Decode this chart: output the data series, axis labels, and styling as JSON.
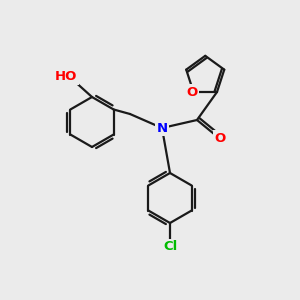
{
  "bg_color": "#ebebeb",
  "bond_color": "#1a1a1a",
  "bond_width": 1.6,
  "atom_colors": {
    "O": "#ff0000",
    "N": "#0000ff",
    "Cl": "#00bb00",
    "H": "#5a8a8a",
    "C": "#1a1a1a"
  }
}
